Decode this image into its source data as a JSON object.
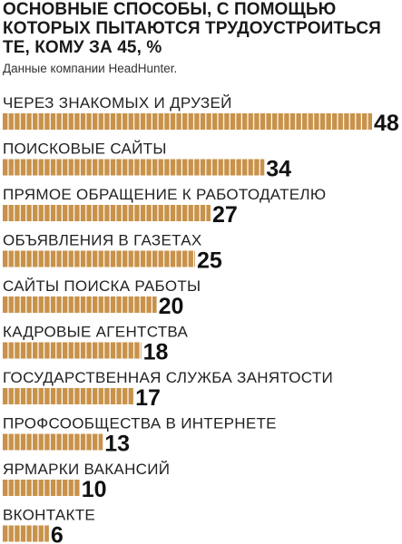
{
  "chart_data": {
    "type": "bar",
    "orientation": "horizontal",
    "title": "ОСНОВНЫЕ СПОСОБЫ, С ПОМОЩЬЮ КОТОРЫХ ПЫТАЮТСЯ ТРУДОУСТРОИТЬСЯ ТЕ, КОМУ ЗА 45, %",
    "subtitle": "Данные компании HeadHunter.",
    "categories": [
      "ЧЕРЕЗ ЗНАКОМЫХ И ДРУЗЕЙ",
      "ПОИСКОВЫЕ САЙТЫ",
      "ПРЯМОЕ ОБРАЩЕНИЕ К РАБОТОДАТЕЛЮ",
      "ОБЪЯВЛЕНИЯ В ГАЗЕТАХ",
      "САЙТЫ ПОИСКА РАБОТЫ",
      "КАДРОВЫЕ АГЕНТСТВА",
      "ГОСУДАРСТВЕННАЯ СЛУЖБА ЗАНЯТОСТИ",
      "ПРОФСООБЩЕСТВА В ИНТЕРНЕТЕ",
      "ЯРМАРКИ ВАКАНСИЙ",
      "ВКОНТАКТЕ"
    ],
    "values": [
      48,
      34,
      27,
      25,
      20,
      18,
      17,
      13,
      10,
      6
    ],
    "bar_color": "#c8924a",
    "grid": false,
    "legend": "none"
  }
}
